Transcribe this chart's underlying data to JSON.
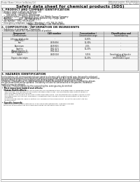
{
  "title": "Safety data sheet for chemical products (SDS)",
  "header_left": "Product Name: Lithium Ion Battery Cell",
  "header_right_line1": "Reference number: SDS-LIB-0001E",
  "header_right_line2": "Established / Revision: Dec.7.2016",
  "section1_title": "1. PRODUCT AND COMPANY IDENTIFICATION",
  "section1_lines": [
    " • Product name: Lithium Ion Battery Cell",
    " • Product code: CylindricalType cell",
    "        (UR18650U, UR18650L, UR18650A)",
    " • Company name:    Sanyo Electric Co., Ltd. Mobile Energy Company",
    " • Address:           2001  Kamikoriyama, Sumoto-City, Hyogo, Japan",
    " • Telephone number:  +81-799-26-4111",
    " • Fax number:  +81-799-26-4129",
    " • Emergency telephone number (Weekday): +81-799-26-3842",
    "                                           (Night and holiday): +81-799-26-4101"
  ],
  "section2_title": "2. COMPOSITION / INFORMATION ON INGREDIENTS",
  "section2_sub1": " • Substance or preparation: Preparation",
  "section2_sub2": " • Information about the chemical nature of product:",
  "table_col1_header": "Component",
  "table_col1_sub": "Chemical name",
  "table_col2_header": "CAS number",
  "table_col3_header": "Concentration /",
  "table_col3_sub": "Concentration range",
  "table_col4_header": "Classification and",
  "table_col4_sub": "hazard labeling",
  "table_rows": [
    [
      "Lithium cobalt oxide",
      "-",
      "30-60%",
      "-"
    ],
    [
      "(LiMnCoO2)",
      "",
      "",
      ""
    ],
    [
      "Iron",
      "7439-89-6",
      "15-30%",
      "-"
    ],
    [
      "Aluminium",
      "7429-90-5",
      "2-5%",
      "-"
    ],
    [
      "Graphite",
      "7782-42-5",
      "10-20%",
      "-"
    ],
    [
      "(Mixed graphite-1)",
      "7782-44-2",
      "",
      ""
    ],
    [
      "(AR-Mix graphite-1)",
      "",
      "",
      ""
    ],
    [
      "Copper",
      "7440-50-8",
      "5-15%",
      "Sensitization of the skin"
    ],
    [
      "",
      "",
      "",
      "group No.2"
    ],
    [
      "Organic electrolyte",
      "-",
      "10-20%",
      "Inflammable liquid"
    ]
  ],
  "section3_title": "3. HAZARDS IDENTIFICATION",
  "section3_lines": [
    "For the battery cell, chemical materials are stored in a hermetically sealed metal case, designed to withstand",
    "temperatures and pressures/stresses/contractions during normal use. As a result, during normal use, there is no",
    "physical danger of ignition or explosion and thereisa danger of hazardous materials leakage.",
    "  However, if exposed to a fire, added mechanical shocks, decomposed, whose electric current may misuse,",
    "the gas release ventcool be operated. The battery cell case will be breached at fire patterns. Hazardous",
    "materials may be released.",
    "  Moreover, if heated strongly by the surrounding fire, some gas may be emitted."
  ],
  "section3_hazard": " • Most important hazard and effects:",
  "section3_human_label": "    Human health effects:",
  "section3_human_lines": [
    "      Inhalation: The release of the electrolyte has an anesthesia action and stimulates a respiratory tract.",
    "      Skin contact: The release of the electrolyte stimulates a skin. The electrolyte skin contact causes a",
    "      sore and stimulation on the skin.",
    "      Eye contact: The release of the electrolyte stimulates eyes. The electrolyte eye contact causes a sore",
    "      and stimulation on the eye. Especially, a substance that causes a strong inflammation of the eyes is",
    "      contained.",
    "      Environmental effects: Since a battery cell remains in the environment, do not throw out it into the",
    "      environment."
  ],
  "section3_specific": " • Specific hazards:",
  "section3_specific_lines": [
    "    If the electrolyte contacts with water, it will generate detrimental hydrogen fluoride.",
    "    Since the used electrolyte is inflammable liquid, do not bring close to fire."
  ],
  "bg_color": "#ffffff",
  "text_color": "#111111",
  "gray_text": "#555555",
  "line_color": "#777777",
  "table_header_bg": "#d8d8d8",
  "table_bg": "#f8f8f8"
}
